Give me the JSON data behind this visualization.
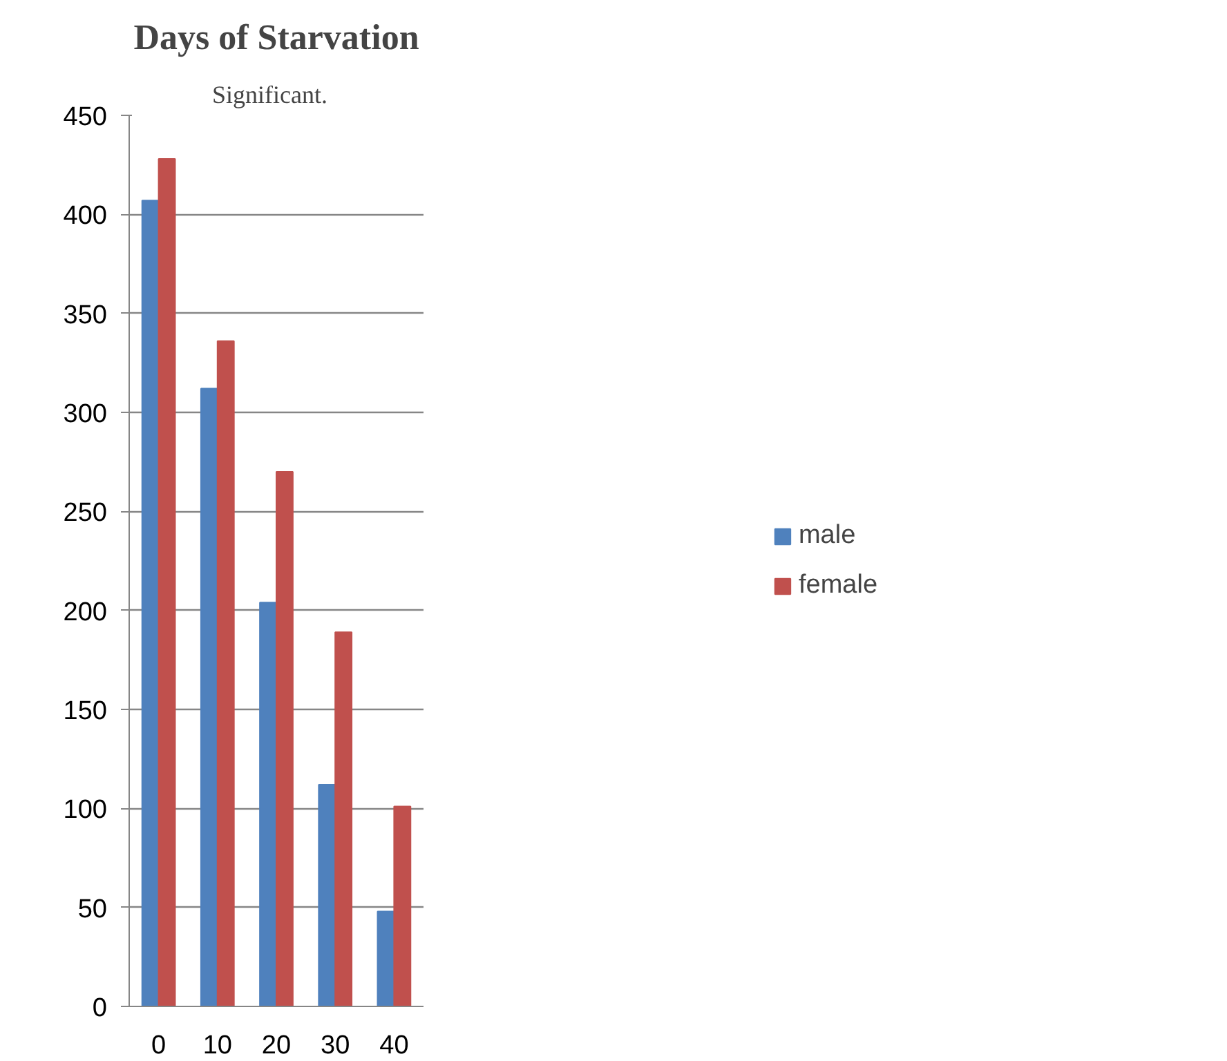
{
  "chart_data": {
    "type": "bar",
    "title": "Days of Starvation",
    "annotations": [
      "Significant."
    ],
    "categories": [
      "0",
      "10",
      "20",
      "30",
      "40"
    ],
    "series": [
      {
        "name": "male",
        "color": "#4f81bd",
        "values": [
          407,
          312,
          204,
          112,
          48
        ]
      },
      {
        "name": "female",
        "color": "#c0504d",
        "values": [
          428,
          336,
          270,
          189,
          101
        ]
      }
    ],
    "ylim": [
      0,
      450
    ],
    "yticks": [
      0,
      50,
      100,
      150,
      200,
      250,
      300,
      350,
      400,
      450
    ],
    "grid": "y",
    "legend": "right"
  }
}
